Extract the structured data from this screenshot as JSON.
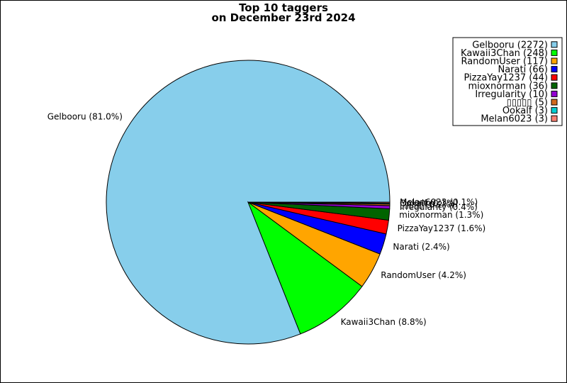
{
  "chart_data": {
    "type": "pie",
    "title": "Top 10 taggers",
    "subtitle": "on December 23rd 2024",
    "legend_position": "top-right",
    "slices": [
      {
        "name": "Gelbooru",
        "value": 2272,
        "percent_label": "Gelbooru (81.0%)",
        "legend_label": "Gelbooru (2272)",
        "color": "#87ceeb"
      },
      {
        "name": "Kawaii3Chan",
        "value": 248,
        "percent_label": "Kawaii3Chan (8.8%)",
        "legend_label": "Kawaii3Chan (248)",
        "color": "#00ff00"
      },
      {
        "name": "RandomUser",
        "value": 117,
        "percent_label": "RandomUser (4.2%)",
        "legend_label": "RandomUser (117)",
        "color": "#ffa500"
      },
      {
        "name": "Narati",
        "value": 66,
        "percent_label": "Narati (2.4%)",
        "legend_label": "Narati (66)",
        "color": "#0000ff"
      },
      {
        "name": "PizzaYay1237",
        "value": 44,
        "percent_label": "PizzaYay1237 (1.6%)",
        "legend_label": "PizzaYay1237 (44)",
        "color": "#ff0000"
      },
      {
        "name": "mioxnorman",
        "value": 36,
        "percent_label": "mioxnorman (1.3%)",
        "legend_label": "mioxnorman (36)",
        "color": "#006400"
      },
      {
        "name": "Irregularity",
        "value": 10,
        "percent_label": "Irregularity (0.4%)",
        "legend_label": "Irregularity (10)",
        "color": "#9400d3"
      },
      {
        "name": "▯▯▯▯▯",
        "value": 5,
        "percent_label": "▯▯▯▯▯ (0.2%)",
        "legend_label": "▯▯▯▯▯ (5)",
        "color": "#d2691e"
      },
      {
        "name": "Ookalf",
        "value": 3,
        "percent_label": "Ookalf (0.1%)",
        "legend_label": "Ookalf (3)",
        "color": "#00ced1"
      },
      {
        "name": "Melan6023",
        "value": 3,
        "percent_label": "Melan6023 (0.1%)",
        "legend_label": "Melan6023 (3)",
        "color": "#fa8072"
      }
    ]
  }
}
